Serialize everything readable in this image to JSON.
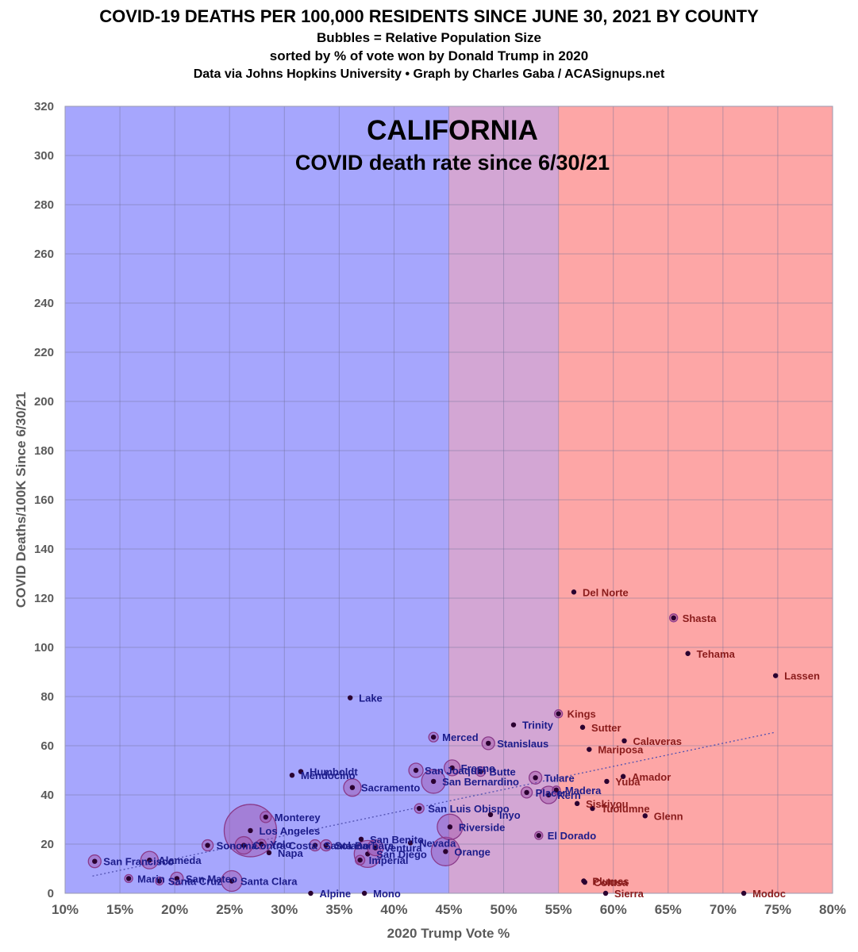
{
  "header": {
    "title": "COVID-19 DEATHS PER 100,000 RESIDENTS SINCE JUNE 30, 2021 BY COUNTY",
    "subtitle1": "Bubbles = Relative Population Size",
    "subtitle2": "sorted by % of vote won by Donald Trump in 2020",
    "subtitle3": "Data via Johns Hopkins University • Graph by Charles Gaba / ACASignups.net"
  },
  "chart_data": {
    "type": "scatter",
    "title": "CALIFORNIA",
    "subtitle": "COVID death rate since 6/30/21",
    "xlabel": "2020 Trump Vote %",
    "ylabel": "COVID Deaths/100K Since 6/30/21",
    "xlim": [
      10,
      80
    ],
    "ylim": [
      0,
      320
    ],
    "x_ticks": [
      "10%",
      "15%",
      "20%",
      "25%",
      "30%",
      "35%",
      "40%",
      "45%",
      "50%",
      "55%",
      "60%",
      "65%",
      "70%",
      "75%",
      "80%"
    ],
    "y_ticks": [
      "0",
      "20",
      "40",
      "60",
      "80",
      "100",
      "120",
      "140",
      "160",
      "180",
      "200",
      "220",
      "240",
      "260",
      "280",
      "300",
      "320"
    ],
    "grid": true,
    "bands": [
      {
        "from": 10,
        "to": 45,
        "color": "#a6a6fd"
      },
      {
        "from": 45,
        "to": 55,
        "color": "#d3a6d4"
      },
      {
        "from": 55,
        "to": 80,
        "color": "#fda6a6"
      }
    ],
    "colors": {
      "blue_label": "#1c1c8a",
      "red_label": "#8a1c1c",
      "dot": "#2a0030",
      "bubble_fill": "#a050a8",
      "bubble_stroke": "#8a3a8a",
      "trend": "#5050b0"
    },
    "trendline": {
      "x": [
        12.5,
        74.8
      ],
      "y": [
        7,
        65.5
      ]
    },
    "points": [
      {
        "name": "San Francisco",
        "x": 12.7,
        "y": 13,
        "size": 8
      },
      {
        "name": "Alameda",
        "x": 17.7,
        "y": 13.5,
        "size": 11
      },
      {
        "name": "Marin",
        "x": 15.8,
        "y": 6,
        "size": 5
      },
      {
        "name": "Santa Cruz",
        "x": 18.6,
        "y": 5,
        "size": 5
      },
      {
        "name": "San Mateo",
        "x": 20.2,
        "y": 6,
        "size": 8
      },
      {
        "name": "Santa Clara",
        "x": 25.2,
        "y": 5,
        "size": 13
      },
      {
        "name": "Los Angeles",
        "x": 26.9,
        "y": 25.5,
        "size": 33
      },
      {
        "name": "Sonoma",
        "x": 23.0,
        "y": 19.5,
        "size": 7
      },
      {
        "name": "Contra Costa",
        "x": 26.3,
        "y": 19.5,
        "size": 11
      },
      {
        "name": "Yolo",
        "x": 27.9,
        "y": 20,
        "size": 6
      },
      {
        "name": "Napa",
        "x": 28.6,
        "y": 16.5,
        "size": 4
      },
      {
        "name": "Monterey",
        "x": 28.3,
        "y": 31,
        "size": 7
      },
      {
        "name": "Mendocino",
        "x": 30.7,
        "y": 48,
        "size": 4
      },
      {
        "name": "Humboldt",
        "x": 31.5,
        "y": 49.5,
        "size": 4
      },
      {
        "name": "Lake",
        "x": 36.0,
        "y": 79.5,
        "size": 4
      },
      {
        "name": "Sacramento",
        "x": 36.2,
        "y": 43,
        "size": 11
      },
      {
        "name": "Santa Barbara",
        "x": 32.8,
        "y": 19.5,
        "size": 7
      },
      {
        "name": "Solano",
        "x": 33.8,
        "y": 19.5,
        "size": 7
      },
      {
        "name": "San Benito",
        "x": 37.0,
        "y": 22,
        "size": 4
      },
      {
        "name": "Imperial",
        "x": 36.9,
        "y": 13.5,
        "size": 6
      },
      {
        "name": "Ventura",
        "x": 38.3,
        "y": 18.5,
        "size": 10
      },
      {
        "name": "San Diego",
        "x": 37.6,
        "y": 16,
        "size": 17
      },
      {
        "name": "Nevada",
        "x": 41.5,
        "y": 20.5,
        "size": 4
      },
      {
        "name": "Alpine",
        "x": 32.4,
        "y": 0,
        "size": 3
      },
      {
        "name": "Mono",
        "x": 37.3,
        "y": 0,
        "size": 3
      },
      {
        "name": "San Joaquin",
        "x": 42.0,
        "y": 50,
        "size": 9
      },
      {
        "name": "San Bernardino",
        "x": 43.6,
        "y": 45.5,
        "size": 15
      },
      {
        "name": "Merced",
        "x": 43.6,
        "y": 63.5,
        "size": 6
      },
      {
        "name": "San Luis Obispo",
        "x": 42.3,
        "y": 34.5,
        "size": 6
      },
      {
        "name": "Orange",
        "x": 44.7,
        "y": 17,
        "size": 18
      },
      {
        "name": "Riverside",
        "x": 45.1,
        "y": 27,
        "size": 16
      },
      {
        "name": "Fresno",
        "x": 45.3,
        "y": 51,
        "size": 10
      },
      {
        "name": "Butte",
        "x": 47.9,
        "y": 49.5,
        "size": 6
      },
      {
        "name": "Stanislaus",
        "x": 48.6,
        "y": 61,
        "size": 8
      },
      {
        "name": "Inyo",
        "x": 48.8,
        "y": 32,
        "size": 3
      },
      {
        "name": "Trinity",
        "x": 50.9,
        "y": 68.5,
        "size": 3
      },
      {
        "name": "Placer",
        "x": 52.1,
        "y": 41,
        "size": 7
      },
      {
        "name": "Tulare",
        "x": 52.9,
        "y": 47,
        "size": 8
      },
      {
        "name": "El Dorado",
        "x": 53.2,
        "y": 23.5,
        "size": 5
      },
      {
        "name": "Kern",
        "x": 54.1,
        "y": 40,
        "size": 11
      },
      {
        "name": "Kings",
        "x": 55.0,
        "y": 73,
        "size": 5
      },
      {
        "name": "Madera",
        "x": 54.8,
        "y": 42,
        "size": 5
      },
      {
        "name": "Del Norte",
        "x": 56.4,
        "y": 122.5,
        "size": 3
      },
      {
        "name": "Siskiyou",
        "x": 56.7,
        "y": 36.5,
        "size": 3
      },
      {
        "name": "Sutter",
        "x": 57.2,
        "y": 67.5,
        "size": 4
      },
      {
        "name": "Plumas",
        "x": 57.3,
        "y": 5,
        "size": 3
      },
      {
        "name": "Colusa",
        "x": 57.4,
        "y": 4.5,
        "size": 3
      },
      {
        "name": "Mariposa",
        "x": 57.8,
        "y": 58.5,
        "size": 3
      },
      {
        "name": "Tuolumne",
        "x": 58.1,
        "y": 34.5,
        "size": 3
      },
      {
        "name": "Sierra",
        "x": 59.3,
        "y": 0,
        "size": 3
      },
      {
        "name": "Yuba",
        "x": 59.4,
        "y": 45.5,
        "size": 4
      },
      {
        "name": "Calaveras",
        "x": 61.0,
        "y": 62,
        "size": 3
      },
      {
        "name": "Amador",
        "x": 60.9,
        "y": 47.5,
        "size": 3
      },
      {
        "name": "Glenn",
        "x": 62.9,
        "y": 31.5,
        "size": 3
      },
      {
        "name": "Shasta",
        "x": 65.5,
        "y": 112,
        "size": 5
      },
      {
        "name": "Tehama",
        "x": 66.8,
        "y": 97.5,
        "size": 3
      },
      {
        "name": "Modoc",
        "x": 71.9,
        "y": 0,
        "size": 3
      },
      {
        "name": "Lassen",
        "x": 74.8,
        "y": 88.5,
        "size": 3
      }
    ]
  }
}
